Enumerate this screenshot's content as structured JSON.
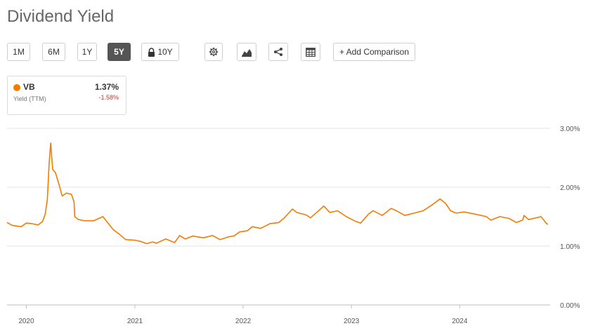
{
  "page": {
    "title": "Dividend Yield"
  },
  "toolbar": {
    "range_buttons": [
      "1M",
      "6M",
      "1Y",
      "5Y"
    ],
    "active_range": "5Y",
    "locked_range": "10Y",
    "settings_icon": "gear-icon",
    "chart_type_icon": "mountain-chart-icon",
    "share_icon": "share-icon",
    "table_icon": "table-icon",
    "add_comparison_label": "+ Add Comparison"
  },
  "legend": {
    "ticker": "VB",
    "value": "1.37%",
    "subtitle": "Yield (TTM)",
    "change": "-1.58%",
    "color": "#f57c00"
  },
  "colors": {
    "line": "#f57c00",
    "grid": "#e3e3e3",
    "active_button": "#555555",
    "negative": "#c0392b"
  },
  "chart_data": {
    "type": "line",
    "title": "Dividend Yield",
    "xlabel": "",
    "ylabel": "",
    "ylim": [
      0,
      3
    ],
    "yticks": [
      "0.00%",
      "1.00%",
      "2.00%",
      "3.00%"
    ],
    "xticks": [
      "2020",
      "2021",
      "2022",
      "2023",
      "2024"
    ],
    "grid": true,
    "legend_position": "top-left",
    "series": [
      {
        "name": "VB",
        "x": [
          "2019-10-28",
          "2019-11-15",
          "2019-12-15",
          "2020-01-01",
          "2020-01-20",
          "2020-02-10",
          "2020-02-25",
          "2020-03-05",
          "2020-03-12",
          "2020-03-18",
          "2020-03-23",
          "2020-03-30",
          "2020-04-08",
          "2020-04-20",
          "2020-05-01",
          "2020-05-15",
          "2020-06-01",
          "2020-06-10",
          "2020-06-12",
          "2020-06-25",
          "2020-07-15",
          "2020-08-15",
          "2020-09-15",
          "2020-10-01",
          "2020-10-20",
          "2020-11-10",
          "2020-12-01",
          "2021-01-01",
          "2021-01-20",
          "2021-02-10",
          "2021-03-01",
          "2021-03-15",
          "2021-04-15",
          "2021-05-15",
          "2021-06-01",
          "2021-06-20",
          "2021-07-15",
          "2021-08-20",
          "2021-09-20",
          "2021-10-15",
          "2021-11-15",
          "2021-12-01",
          "2021-12-20",
          "2022-01-15",
          "2022-02-01",
          "2022-03-01",
          "2022-04-01",
          "2022-05-01",
          "2022-05-20",
          "2022-06-16",
          "2022-07-01",
          "2022-08-01",
          "2022-08-16",
          "2022-09-01",
          "2022-09-30",
          "2022-10-20",
          "2022-11-15",
          "2022-12-15",
          "2023-01-15",
          "2023-02-01",
          "2023-03-01",
          "2023-03-15",
          "2023-04-15",
          "2023-05-15",
          "2023-06-01",
          "2023-06-30",
          "2023-07-31",
          "2023-08-31",
          "2023-09-30",
          "2023-10-27",
          "2023-11-15",
          "2023-12-01",
          "2023-12-20",
          "2024-01-15",
          "2024-02-15",
          "2024-03-31",
          "2024-04-15",
          "2024-05-15",
          "2024-06-15",
          "2024-07-10",
          "2024-07-31",
          "2024-08-05",
          "2024-08-20",
          "2024-09-15",
          "2024-10-01",
          "2024-10-20",
          "2024-10-25"
        ],
        "values": [
          1.4,
          1.35,
          1.33,
          1.39,
          1.38,
          1.36,
          1.42,
          1.55,
          1.8,
          2.4,
          2.75,
          2.3,
          2.25,
          2.05,
          1.85,
          1.9,
          1.88,
          1.75,
          1.5,
          1.45,
          1.43,
          1.43,
          1.5,
          1.4,
          1.28,
          1.2,
          1.11,
          1.1,
          1.08,
          1.04,
          1.07,
          1.05,
          1.12,
          1.06,
          1.18,
          1.12,
          1.17,
          1.14,
          1.18,
          1.11,
          1.16,
          1.17,
          1.24,
          1.26,
          1.33,
          1.3,
          1.38,
          1.4,
          1.48,
          1.63,
          1.57,
          1.53,
          1.48,
          1.55,
          1.68,
          1.57,
          1.6,
          1.5,
          1.42,
          1.39,
          1.55,
          1.6,
          1.52,
          1.64,
          1.6,
          1.52,
          1.56,
          1.6,
          1.7,
          1.8,
          1.72,
          1.6,
          1.56,
          1.58,
          1.55,
          1.5,
          1.44,
          1.5,
          1.47,
          1.4,
          1.44,
          1.52,
          1.45,
          1.48,
          1.5,
          1.38,
          1.37
        ]
      }
    ]
  }
}
